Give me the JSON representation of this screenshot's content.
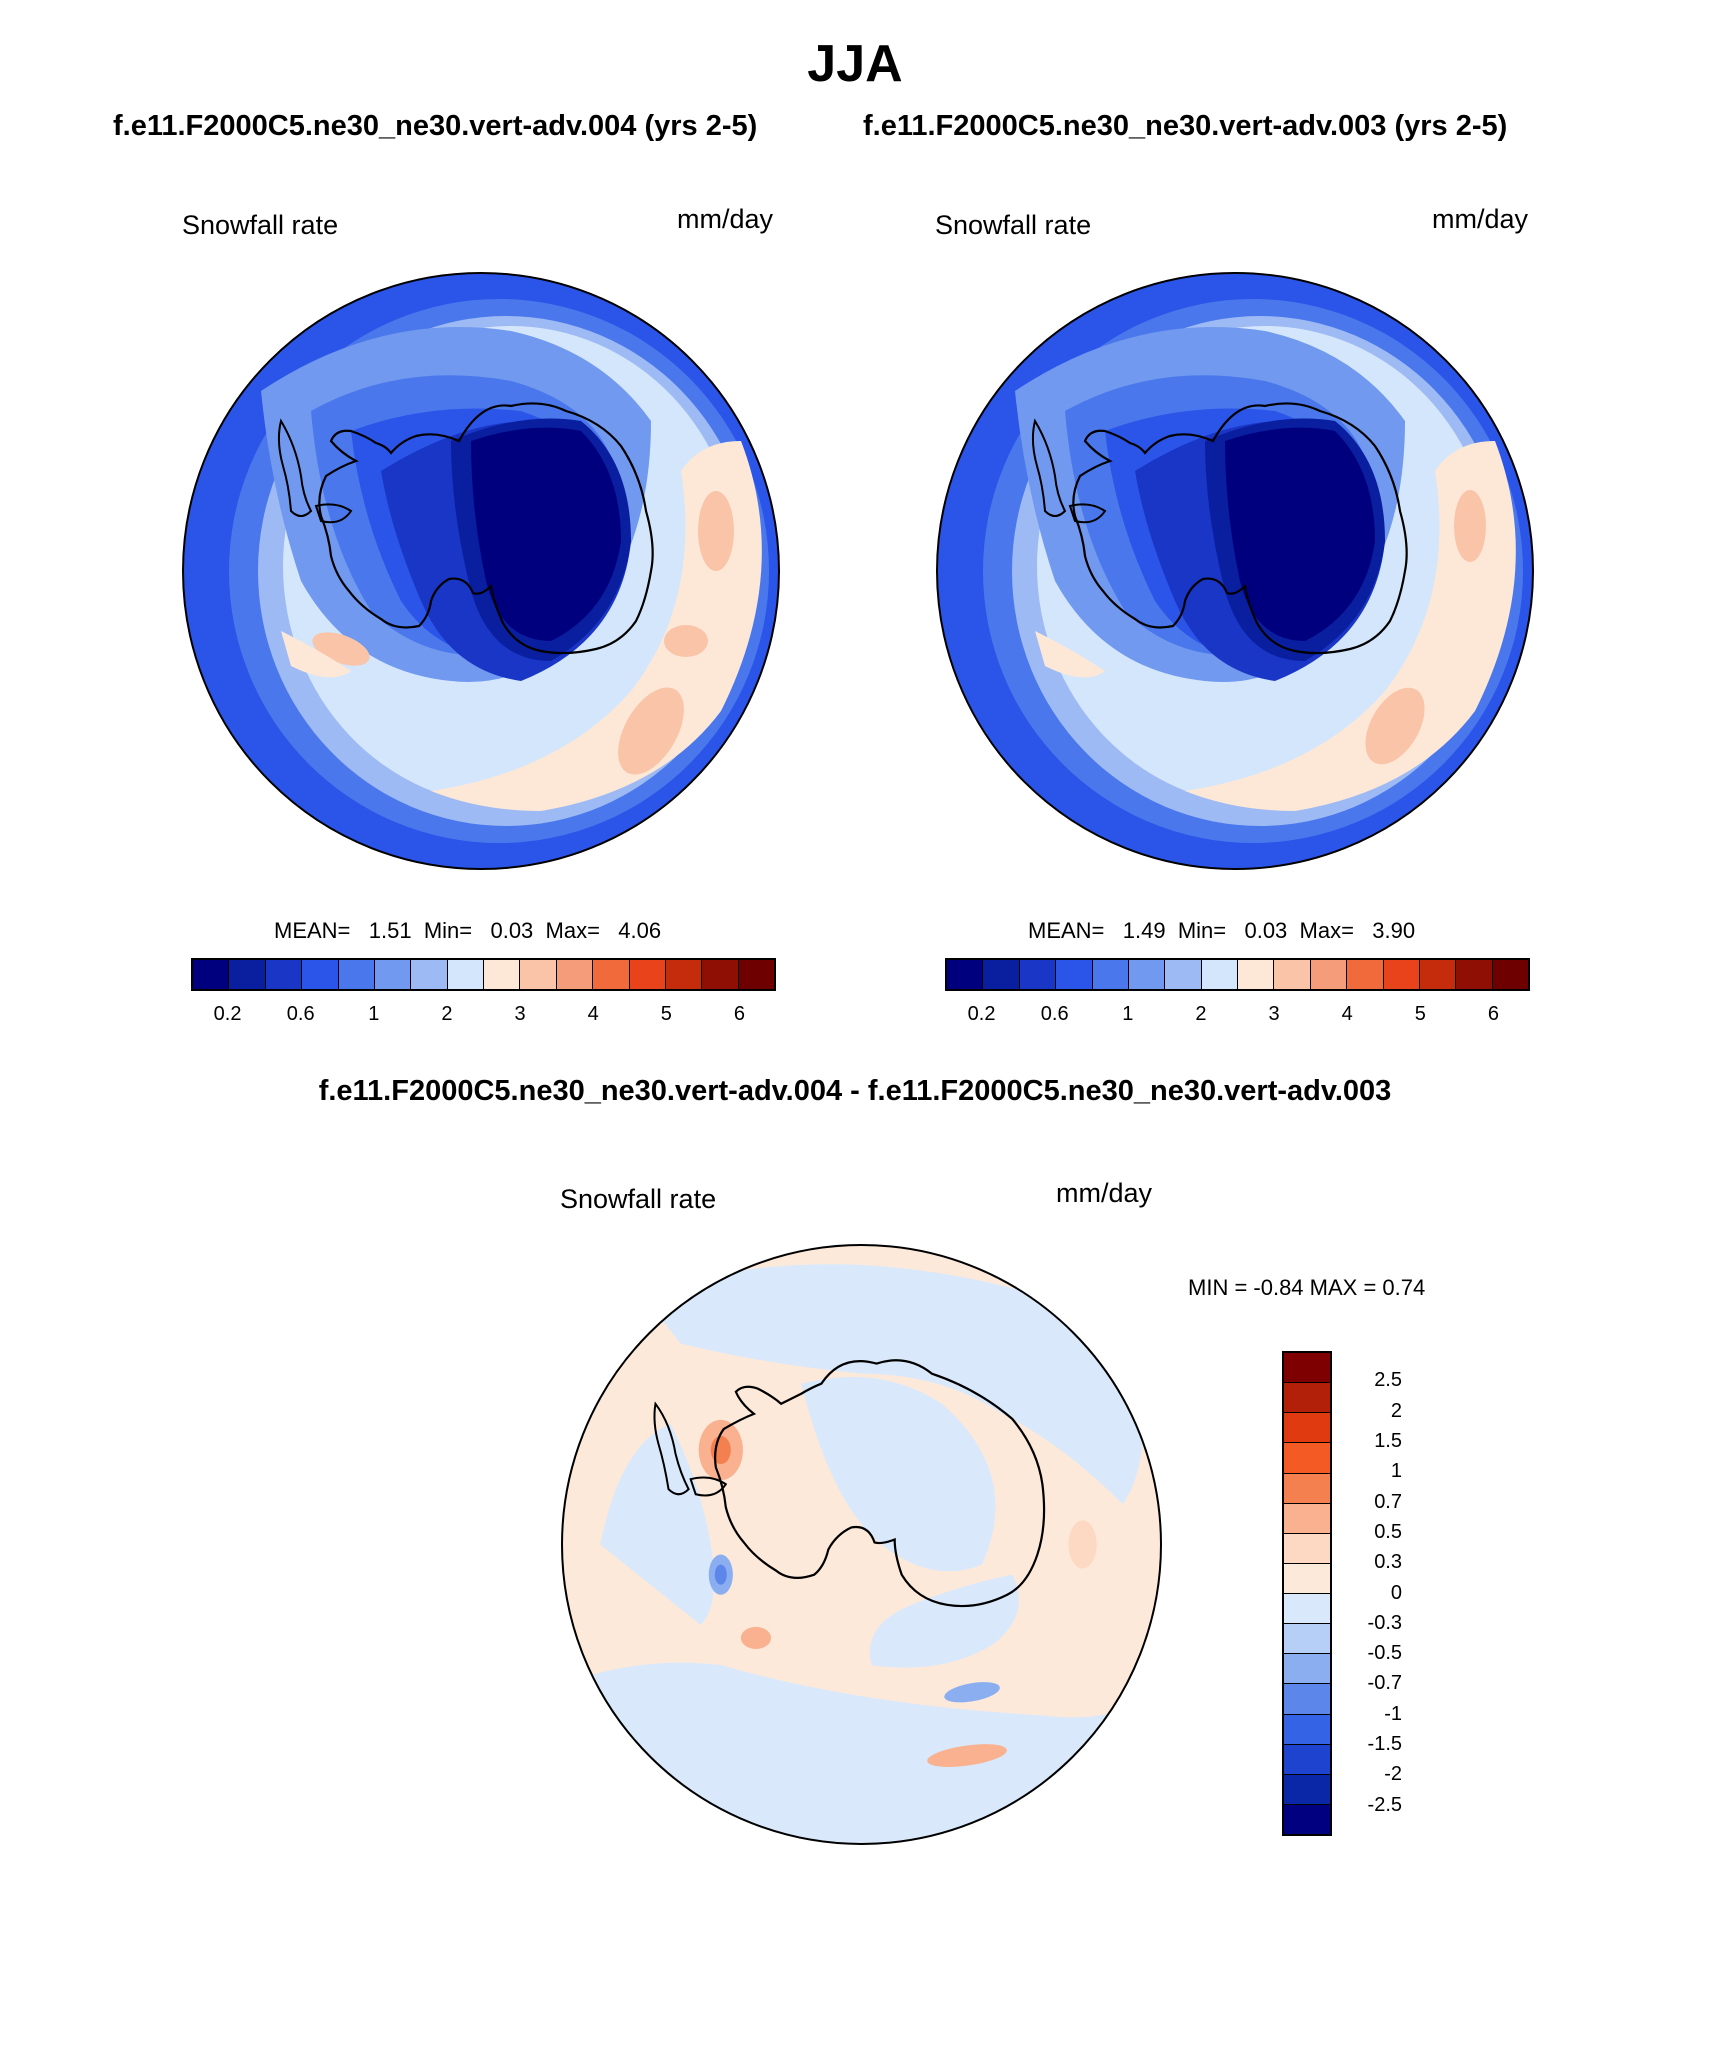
{
  "header": {
    "title": "JJA",
    "subtitle_left": "f.e11.F2000C5.ne30_ne30.vert-adv.004 (yrs 2-5)",
    "subtitle_right": "f.e11.F2000C5.ne30_ne30.vert-adv.003 (yrs 2-5)"
  },
  "panels": {
    "left": {
      "variable": "Snowfall rate",
      "units": "mm/day",
      "mean_label": "MEAN=",
      "mean": "1.51",
      "min_label": "Min=",
      "min": "0.03",
      "max_label": "Max=",
      "max": "4.06"
    },
    "right": {
      "variable": "Snowfall rate",
      "units": "mm/day",
      "mean_label": "MEAN=",
      "mean": "1.49",
      "min_label": "Min=",
      "min": "0.03",
      "max_label": "Max=",
      "max": "3.90"
    },
    "diff": {
      "title": "f.e11.F2000C5.ne30_ne30.vert-adv.004 - f.e11.F2000C5.ne30_ne30.vert-adv.003",
      "variable": "Snowfall rate",
      "units": "mm/day",
      "minmax": "MIN =  -0.84 MAX =   0.74"
    }
  },
  "colorbars": {
    "abs_ticks": [
      "0.2",
      "0.6",
      "1",
      "2",
      "3",
      "4",
      "5",
      "6"
    ],
    "abs_colors": [
      "#00007f",
      "#0a1ea0",
      "#1a36c6",
      "#2b55e8",
      "#4a78ec",
      "#7099ef",
      "#9dbaf4",
      "#d3e6fb",
      "#fde8d8",
      "#f9c4a8",
      "#f59d7a",
      "#f06a3c",
      "#e8431a",
      "#c42c0c",
      "#8f0f05",
      "#6e0000"
    ],
    "diff_ticks": [
      "2.5",
      "2",
      "1.5",
      "1",
      "0.7",
      "0.5",
      "0.3",
      "0",
      "-0.3",
      "-0.5",
      "-0.7",
      "-1",
      "-1.5",
      "-2",
      "-2.5"
    ],
    "diff_colors": [
      "#7f0000",
      "#b3200a",
      "#e03a10",
      "#f45a24",
      "#f5804f",
      "#f9b18f",
      "#fdd8c2",
      "#fde9da",
      "#d9e9fb",
      "#b5cff6",
      "#8aaef0",
      "#5d86ea",
      "#3563e6",
      "#1d43cf",
      "#0a27a8",
      "#000080"
    ]
  },
  "chart_data": [
    {
      "type": "heatmap",
      "title": "Snowfall rate",
      "units": "mm/day",
      "projection": "south polar stereographic",
      "mean": 1.51,
      "min": 0.03,
      "max": 4.06,
      "colorbar_levels": [
        0.2,
        0.4,
        0.6,
        0.8,
        1,
        1.5,
        2,
        2.5,
        3,
        3.5,
        4,
        4.5,
        5,
        5.5,
        6
      ],
      "tick_labels": [
        "0.2",
        "0.6",
        "1",
        "2",
        "3",
        "4",
        "5",
        "6"
      ]
    },
    {
      "type": "heatmap",
      "title": "Snowfall rate",
      "units": "mm/day",
      "projection": "south polar stereographic",
      "mean": 1.49,
      "min": 0.03,
      "max": 3.9,
      "colorbar_levels": [
        0.2,
        0.4,
        0.6,
        0.8,
        1,
        1.5,
        2,
        2.5,
        3,
        3.5,
        4,
        4.5,
        5,
        5.5,
        6
      ],
      "tick_labels": [
        "0.2",
        "0.6",
        "1",
        "2",
        "3",
        "4",
        "5",
        "6"
      ]
    },
    {
      "type": "heatmap",
      "title": "Snowfall rate",
      "units": "mm/day",
      "projection": "south polar stereographic",
      "min": -0.84,
      "max": 0.74,
      "colorbar_levels": [
        -2.5,
        -2,
        -1.5,
        -1,
        -0.7,
        -0.5,
        -0.3,
        0,
        0.3,
        0.5,
        0.7,
        1,
        1.5,
        2,
        2.5
      ]
    }
  ]
}
